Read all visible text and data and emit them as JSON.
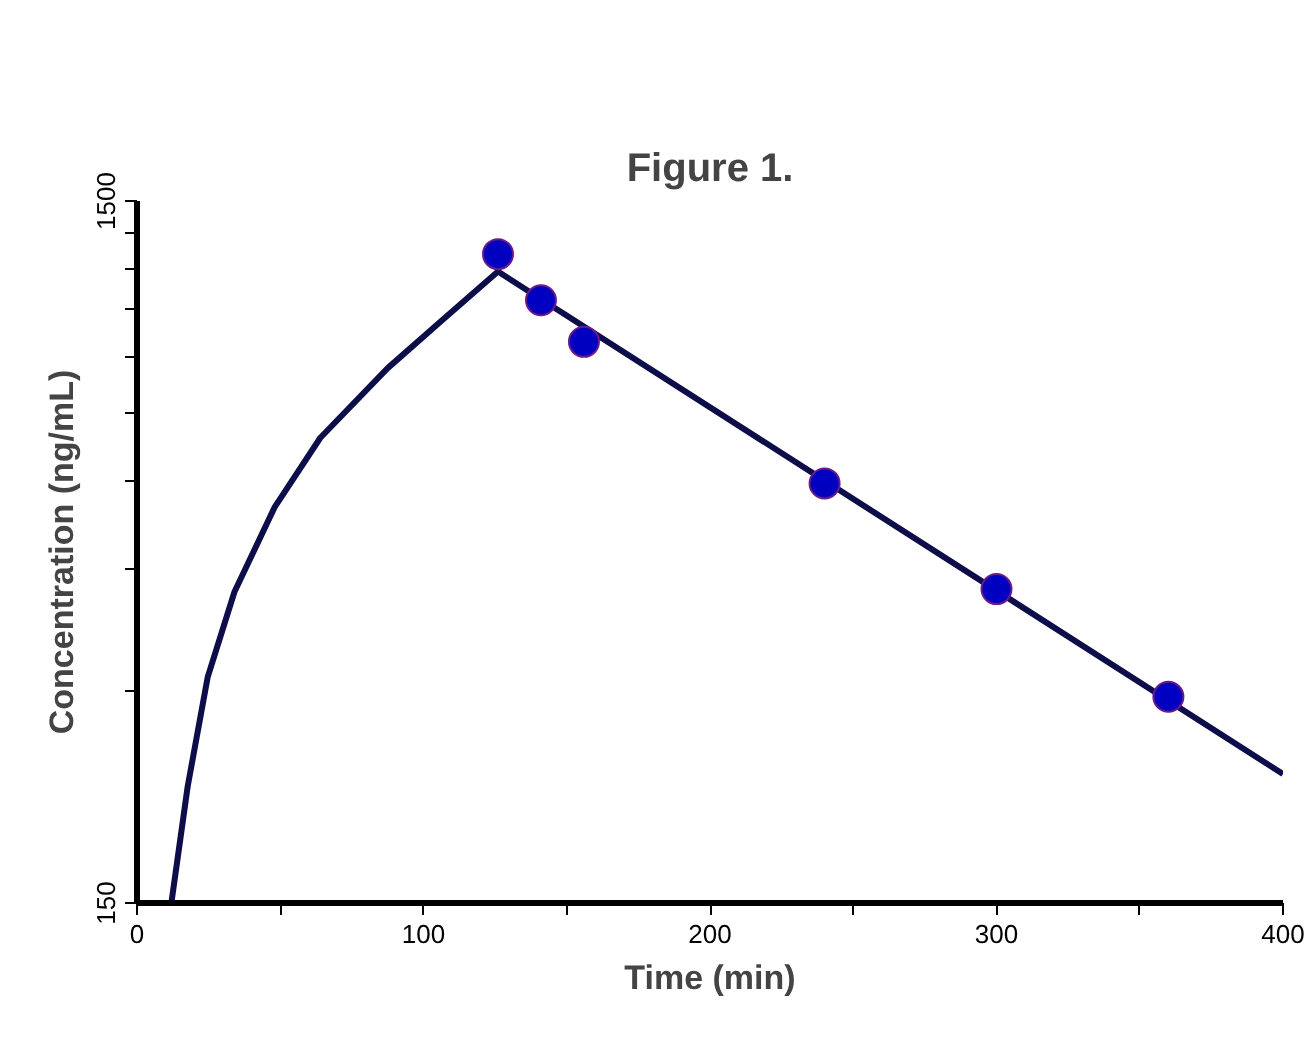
{
  "chart_data": {
    "type": "line",
    "title": "Figure 1.",
    "xlabel": "Time (min)",
    "ylabel": "Concentration (ng/mL)",
    "log": "y",
    "grid": false,
    "xlim": [
      0,
      400
    ],
    "ylim": [
      150,
      1500
    ],
    "xticks": [
      0,
      {
        "value": 50,
        "label": null
      },
      100,
      {
        "value": 150,
        "label": null
      },
      200,
      {
        "value": 250,
        "label": null
      },
      300,
      {
        "value": 350,
        "label": null
      },
      400
    ],
    "yticks": [
      150,
      {
        "value": 300,
        "label": null
      },
      {
        "value": 450,
        "label": null
      },
      {
        "value": 600,
        "label": null
      },
      {
        "value": 750,
        "label": null
      },
      {
        "value": 900,
        "label": null
      },
      {
        "value": 1050,
        "label": null
      },
      {
        "value": 1200,
        "label": null
      },
      {
        "value": 1350,
        "label": null
      },
      1500
    ],
    "series": [
      {
        "color": "#0d0d4a",
        "marker": "none",
        "x": [
          12,
          17.7,
          24.7,
          34,
          48,
          64,
          87.5,
          106,
          126,
          400
        ],
        "values": [
          150,
          220,
          315,
          416,
          549,
          690,
          867,
          1010,
          1190,
          229
        ]
      },
      {
        "type": "scatter",
        "color": "#0000c0",
        "marker": "circle",
        "x": [
          126,
          141,
          156,
          240,
          300,
          360
        ],
        "values": [
          1260,
          1083,
          945,
          594,
          420,
          295
        ]
      }
    ]
  }
}
